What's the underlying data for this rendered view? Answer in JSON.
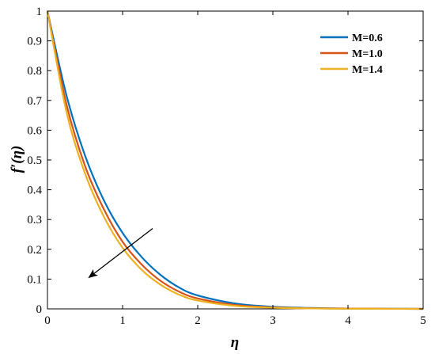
{
  "chart_data": {
    "type": "line",
    "title": "",
    "xlabel": "η",
    "ylabel": "f′(η)",
    "xlim": [
      0,
      5
    ],
    "ylim": [
      0,
      1
    ],
    "xticks": [
      "0",
      "1",
      "2",
      "3",
      "4",
      "5"
    ],
    "yticks": [
      "0",
      "0.1",
      "0.2",
      "0.3",
      "0.4",
      "0.5",
      "0.6",
      "0.7",
      "0.8",
      "0.9",
      "1"
    ],
    "grid": false,
    "legend_position": "top-right",
    "x": [
      0,
      0.25,
      0.5,
      0.75,
      1.0,
      1.25,
      1.5,
      1.75,
      2.0,
      2.5,
      3.0,
      3.5,
      4.0,
      4.5,
      5.0
    ],
    "series": [
      {
        "name": "M=0.6",
        "color": "#0072BD",
        "values": [
          1.0,
          0.72,
          0.515,
          0.365,
          0.255,
          0.175,
          0.115,
          0.072,
          0.045,
          0.018,
          0.007,
          0.003,
          0.001,
          0.0005,
          0.0
        ]
      },
      {
        "name": "M=1.0",
        "color": "#D95319",
        "values": [
          1.0,
          0.69,
          0.48,
          0.335,
          0.225,
          0.15,
          0.095,
          0.058,
          0.035,
          0.013,
          0.005,
          0.002,
          0.001,
          0.0003,
          0.0
        ]
      },
      {
        "name": "M=1.4",
        "color": "#EDB120",
        "values": [
          1.0,
          0.665,
          0.455,
          0.31,
          0.205,
          0.132,
          0.082,
          0.048,
          0.028,
          0.01,
          0.004,
          0.0015,
          0.0005,
          0.0002,
          0.0
        ]
      }
    ],
    "annotations": [
      {
        "type": "arrow",
        "from": [
          1.4,
          0.27
        ],
        "to": [
          0.55,
          0.105
        ],
        "color": "#000000",
        "meaning": "increasing M"
      }
    ]
  }
}
